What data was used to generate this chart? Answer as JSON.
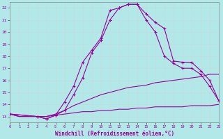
{
  "xlabel": "Windchill (Refroidissement éolien,°C)",
  "background_color": "#b2e8e8",
  "grid_color": "#d0e8e8",
  "line_color": "#990099",
  "xlim": [
    0,
    23
  ],
  "ylim": [
    12.5,
    22.5
  ],
  "xticks": [
    0,
    1,
    2,
    3,
    4,
    5,
    6,
    7,
    8,
    9,
    10,
    11,
    12,
    13,
    14,
    15,
    16,
    17,
    18,
    19,
    20,
    21,
    22,
    23
  ],
  "yticks": [
    13,
    14,
    15,
    16,
    17,
    18,
    19,
    20,
    21,
    22
  ],
  "line1_x": [
    0,
    1,
    2,
    3,
    4,
    5,
    6,
    7,
    8,
    9,
    10,
    11,
    12,
    13,
    14,
    15,
    16,
    17,
    18,
    19,
    20,
    21,
    22,
    23
  ],
  "line1_y": [
    13.2,
    13.0,
    13.0,
    13.0,
    13.0,
    13.1,
    13.2,
    13.3,
    13.4,
    13.4,
    13.5,
    13.5,
    13.6,
    13.6,
    13.7,
    13.7,
    13.8,
    13.8,
    13.8,
    13.8,
    13.9,
    13.9,
    13.9,
    14.0
  ],
  "line2_x": [
    0,
    1,
    2,
    3,
    4,
    5,
    6,
    7,
    8,
    9,
    10,
    11,
    12,
    13,
    14,
    15,
    16,
    17,
    18,
    19,
    20,
    21,
    22,
    23
  ],
  "line2_y": [
    13.2,
    13.0,
    13.0,
    13.0,
    13.0,
    13.2,
    13.5,
    13.9,
    14.2,
    14.5,
    14.8,
    15.0,
    15.2,
    15.4,
    15.5,
    15.6,
    15.8,
    15.9,
    16.0,
    16.1,
    16.2,
    16.3,
    16.5,
    16.5
  ],
  "line3_x": [
    0,
    3,
    4,
    5,
    6,
    7,
    8,
    9,
    10,
    11,
    12,
    13,
    14,
    15,
    16,
    17,
    18,
    19,
    20,
    21,
    22,
    23
  ],
  "line3_y": [
    13.2,
    13.0,
    12.8,
    13.1,
    14.2,
    15.5,
    17.5,
    18.5,
    19.5,
    21.8,
    22.0,
    22.3,
    22.3,
    21.5,
    20.8,
    20.3,
    17.6,
    17.5,
    17.5,
    16.8,
    16.0,
    14.3
  ],
  "line4_x": [
    0,
    3,
    4,
    5,
    6,
    7,
    8,
    9,
    10,
    11,
    12,
    13,
    14,
    15,
    16,
    17,
    18,
    19,
    20,
    21,
    22,
    23
  ],
  "line4_y": [
    13.2,
    13.0,
    12.8,
    13.1,
    13.5,
    14.8,
    16.2,
    18.3,
    19.3,
    21.0,
    22.0,
    22.3,
    22.3,
    21.0,
    20.0,
    18.0,
    17.4,
    17.0,
    17.0,
    16.5,
    15.5,
    14.3
  ]
}
